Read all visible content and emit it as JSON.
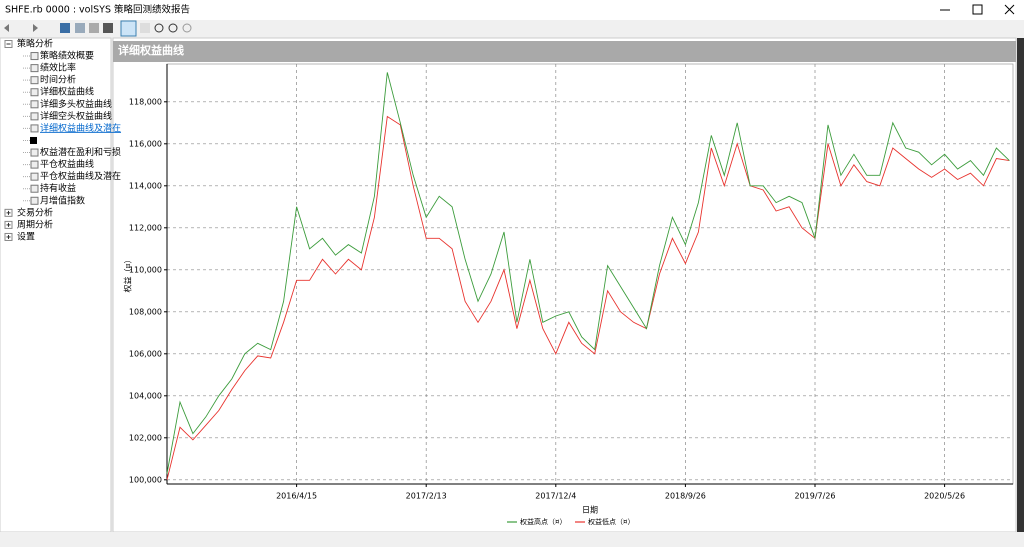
{
  "window": {
    "title": "SHFE.rb 0000 : volSYS 策略回测绩效报告"
  },
  "tree": {
    "nodes": [
      {
        "label": "策略分析",
        "children": [
          {
            "label": "策略绩效概要"
          },
          {
            "label": "绩效比率"
          },
          {
            "label": "时间分析"
          },
          {
            "label": "详细权益曲线"
          },
          {
            "label": "详细多头权益曲线"
          },
          {
            "label": "详细空头权益曲线"
          },
          {
            "label": "详细权益曲线及潜在",
            "selected": true
          },
          {
            "icon": "square"
          },
          {
            "label": "权益潜在盈利和亏损"
          },
          {
            "label": "平仓权益曲线"
          },
          {
            "label": "平仓权益曲线及潜在"
          },
          {
            "label": "持有收益"
          },
          {
            "label": "月增值指数"
          }
        ]
      },
      {
        "label": "交易分析"
      },
      {
        "label": "周期分析"
      },
      {
        "label": "设置"
      }
    ]
  },
  "panel": {
    "title": "详细权益曲线"
  },
  "chart_data": {
    "type": "line",
    "x_label": "日期",
    "y_label": "权益（¤）",
    "categories": [
      null,
      null,
      null,
      null,
      null,
      null,
      null,
      null,
      null,
      null,
      "2016/4/15",
      null,
      null,
      null,
      null,
      null,
      null,
      null,
      null,
      null,
      "2017/2/13",
      null,
      null,
      null,
      null,
      null,
      null,
      null,
      null,
      null,
      "2017/12/4",
      null,
      null,
      null,
      null,
      null,
      null,
      null,
      null,
      null,
      "2018/9/26",
      null,
      null,
      null,
      null,
      null,
      null,
      null,
      null,
      null,
      "2019/7/26",
      null,
      null,
      null,
      null,
      null,
      null,
      null,
      null,
      null,
      "2020/5/26",
      null,
      null,
      null,
      null,
      null
    ],
    "series": [
      {
        "name": "权益高点（¤）",
        "color": "#3c9c3c",
        "values": [
          100300,
          103700,
          102200,
          103000,
          104000,
          104800,
          106000,
          106500,
          106200,
          108500,
          113000,
          111000,
          111500,
          110700,
          111200,
          110800,
          113500,
          119400,
          117000,
          114500,
          112500,
          113500,
          113000,
          110500,
          108500,
          109800,
          111800,
          107500,
          110500,
          107500,
          107800,
          108000,
          106800,
          106200,
          110200,
          109200,
          108200,
          107200,
          110200,
          112500,
          111200,
          113200,
          116400,
          114500,
          117000,
          114000,
          114000,
          113200,
          113500,
          113200,
          111500,
          116900,
          114500,
          115500,
          114500,
          114500,
          117000,
          115800,
          115600,
          115000,
          115500,
          114800,
          115200,
          114500,
          115800,
          115200
        ]
      },
      {
        "name": "权益低点（¤）",
        "color": "#e8332e",
        "values": [
          100000,
          102500,
          101900,
          102600,
          103300,
          104300,
          105200,
          105900,
          105800,
          107500,
          109500,
          109500,
          110500,
          109800,
          110500,
          110000,
          112500,
          117300,
          116900,
          114000,
          111500,
          111500,
          111000,
          108500,
          107500,
          108500,
          110000,
          107200,
          109500,
          107200,
          106000,
          107500,
          106500,
          106000,
          109000,
          108000,
          107500,
          107200,
          109800,
          111500,
          110300,
          111800,
          115800,
          114000,
          116000,
          114000,
          113800,
          112800,
          113000,
          112000,
          111500,
          116000,
          114000,
          115000,
          114200,
          114000,
          115800,
          115300,
          114800,
          114400,
          114800,
          114300,
          114600,
          114000,
          115300,
          115200
        ]
      }
    ],
    "ylim": [
      99800,
      119800
    ],
    "yticks": [
      {
        "value": 100000,
        "label": "100,000"
      },
      {
        "value": 102000,
        "label": "102,000"
      },
      {
        "value": 104000,
        "label": "104,000"
      },
      {
        "value": 106000,
        "label": "106,000"
      },
      {
        "value": 108000,
        "label": "108,000"
      },
      {
        "value": 110000,
        "label": "110,000"
      },
      {
        "value": 112000,
        "label": "112,000"
      },
      {
        "value": 114000,
        "label": "114,000"
      },
      {
        "value": 116000,
        "label": "116,000"
      },
      {
        "value": 118000,
        "label": "118,000"
      }
    ],
    "grid": true,
    "legend": "bottom"
  }
}
